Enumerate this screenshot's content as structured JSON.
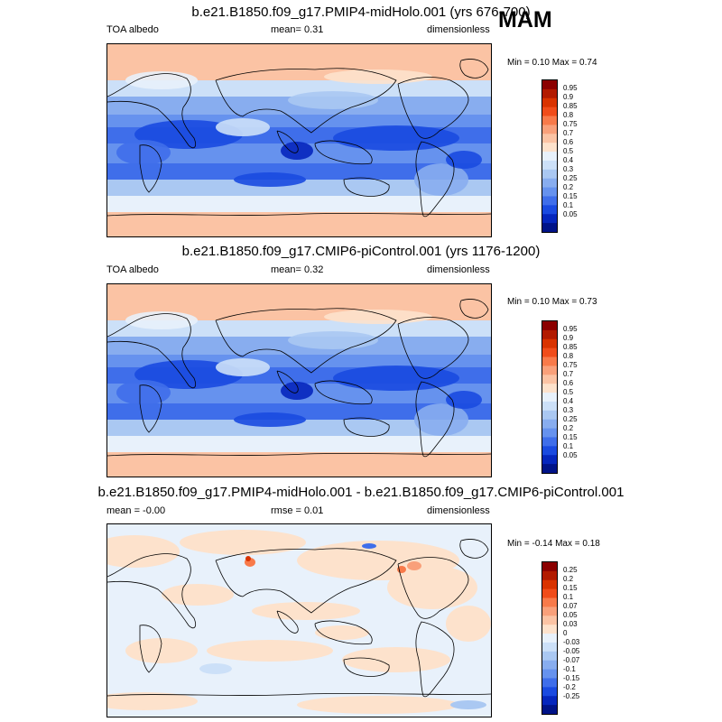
{
  "season": "MAM",
  "panels": [
    {
      "title": "b.e21.B1850.f09_g17.PMIP4-midHolo.001 (yrs 676-700)",
      "left_label": "TOA albedo",
      "center_label": "mean=   0.31",
      "right_label": "dimensionless",
      "minmax": "Min =   0.10 Max =   0.74",
      "colorbar_labels": [
        "0.95",
        "0.9",
        "0.85",
        "0.8",
        "0.75",
        "0.7",
        "0.6",
        "0.5",
        "0.4",
        "0.3",
        "0.25",
        "0.2",
        "0.15",
        "0.1",
        "0.05"
      ],
      "colors": [
        "#8b0000",
        "#b21a00",
        "#d93300",
        "#f04c1a",
        "#f87a4a",
        "#f9a07a",
        "#fbc3a4",
        "#fde2cc",
        "#e8f1fb",
        "#cce0f8",
        "#aac8f2",
        "#88adef",
        "#6692ee",
        "#3f6eea",
        "#1a4ae0",
        "#0526bd",
        "#001388"
      ],
      "map_style": "albedo"
    },
    {
      "title": "b.e21.B1850.f09_g17.CMIP6-piControl.001 (yrs 1176-1200)",
      "left_label": "TOA albedo",
      "center_label": "mean=   0.32",
      "right_label": "dimensionless",
      "minmax": "Min =   0.10 Max =   0.73",
      "colorbar_labels": [
        "0.95",
        "0.9",
        "0.85",
        "0.8",
        "0.75",
        "0.7",
        "0.6",
        "0.5",
        "0.4",
        "0.3",
        "0.25",
        "0.2",
        "0.15",
        "0.1",
        "0.05"
      ],
      "colors": [
        "#8b0000",
        "#b21a00",
        "#d93300",
        "#f04c1a",
        "#f87a4a",
        "#f9a07a",
        "#fbc3a4",
        "#fde2cc",
        "#e8f1fb",
        "#cce0f8",
        "#aac8f2",
        "#88adef",
        "#6692ee",
        "#3f6eea",
        "#1a4ae0",
        "#0526bd",
        "#001388"
      ],
      "map_style": "albedo"
    },
    {
      "title": "b.e21.B1850.f09_g17.PMIP4-midHolo.001 - b.e21.B1850.f09_g17.CMIP6-piControl.001",
      "left_label": "mean =  -0.00",
      "center_label": "rmse =   0.01",
      "right_label": "dimensionless",
      "minmax": "Min =  -0.14 Max =   0.18",
      "colorbar_labels": [
        "0.25",
        "0.2",
        "0.15",
        "0.1",
        "0.07",
        "0.05",
        "0.03",
        "0",
        "-0.03",
        "-0.05",
        "-0.07",
        "-0.1",
        "-0.15",
        "-0.2",
        "-0.25"
      ],
      "colors": [
        "#8b0000",
        "#b21a00",
        "#d93300",
        "#f04c1a",
        "#f87a4a",
        "#f9a07a",
        "#fbc3a4",
        "#fde2cc",
        "#e8f1fb",
        "#cce0f8",
        "#aac8f2",
        "#88adef",
        "#6692ee",
        "#3f6eea",
        "#1a4ae0",
        "#0526bd",
        "#001388"
      ],
      "map_style": "diff"
    }
  ]
}
